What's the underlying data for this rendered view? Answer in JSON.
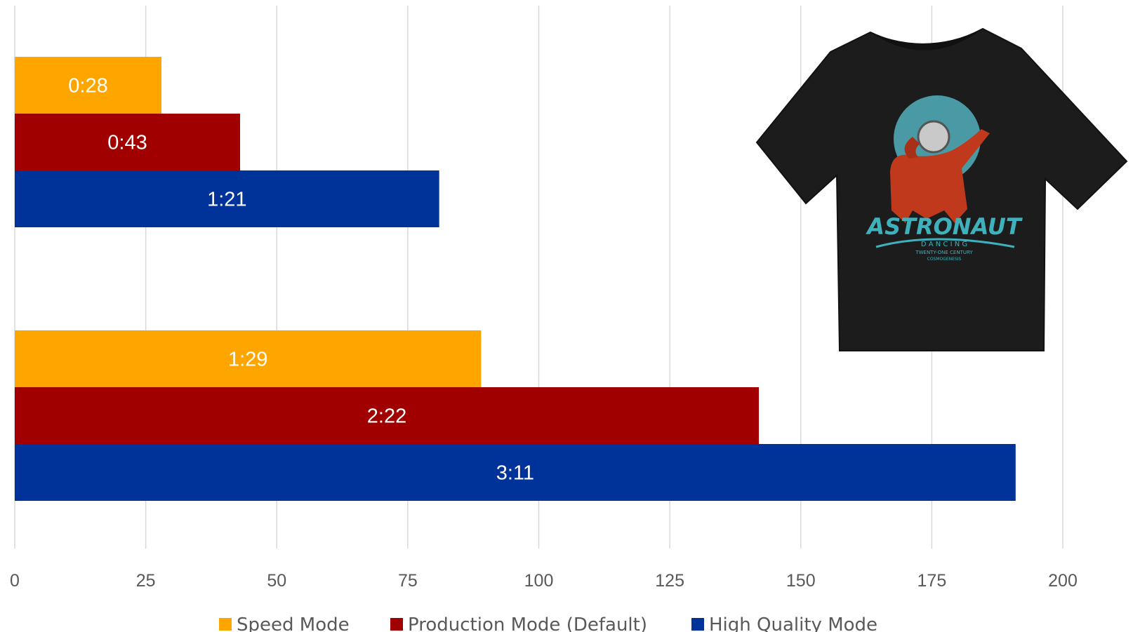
{
  "chart_data": {
    "type": "bar",
    "orientation": "horizontal",
    "title": "",
    "xlabel": "",
    "ylabel": "",
    "xlim": [
      0,
      200
    ],
    "ticks": [
      "0",
      "25",
      "50",
      "75",
      "100",
      "125",
      "150",
      "175",
      "200"
    ],
    "tick_values": [
      0,
      25,
      50,
      75,
      100,
      125,
      150,
      175,
      200
    ],
    "grid": true,
    "legend_position": "bottom",
    "groups": [
      "group-1",
      "group-2"
    ],
    "series": [
      {
        "name": "Speed Mode",
        "color": "#FFA500",
        "values": [
          28,
          89
        ],
        "labels": [
          "0:28",
          "1:29"
        ]
      },
      {
        "name": "Production Mode (Default)",
        "color": "#A00000",
        "values": [
          43,
          142
        ],
        "labels": [
          "0:43",
          "2:22"
        ]
      },
      {
        "name": "High Quality Mode",
        "color": "#003399",
        "values": [
          81,
          191
        ],
        "labels": [
          "1:21",
          "3:11"
        ]
      }
    ]
  },
  "tshirt": {
    "graphic_text": "ASTRONAUT",
    "sub_text": "D A N C I N G",
    "small_text_1": "TWENTY-ONE CENTURY",
    "small_text_2": "COSMOGENESIS",
    "shirt_color": "#1c1c1c",
    "moon_color": "#4a9aa6",
    "suit_color": "#c0391c",
    "text_color": "#3fb1bd"
  }
}
